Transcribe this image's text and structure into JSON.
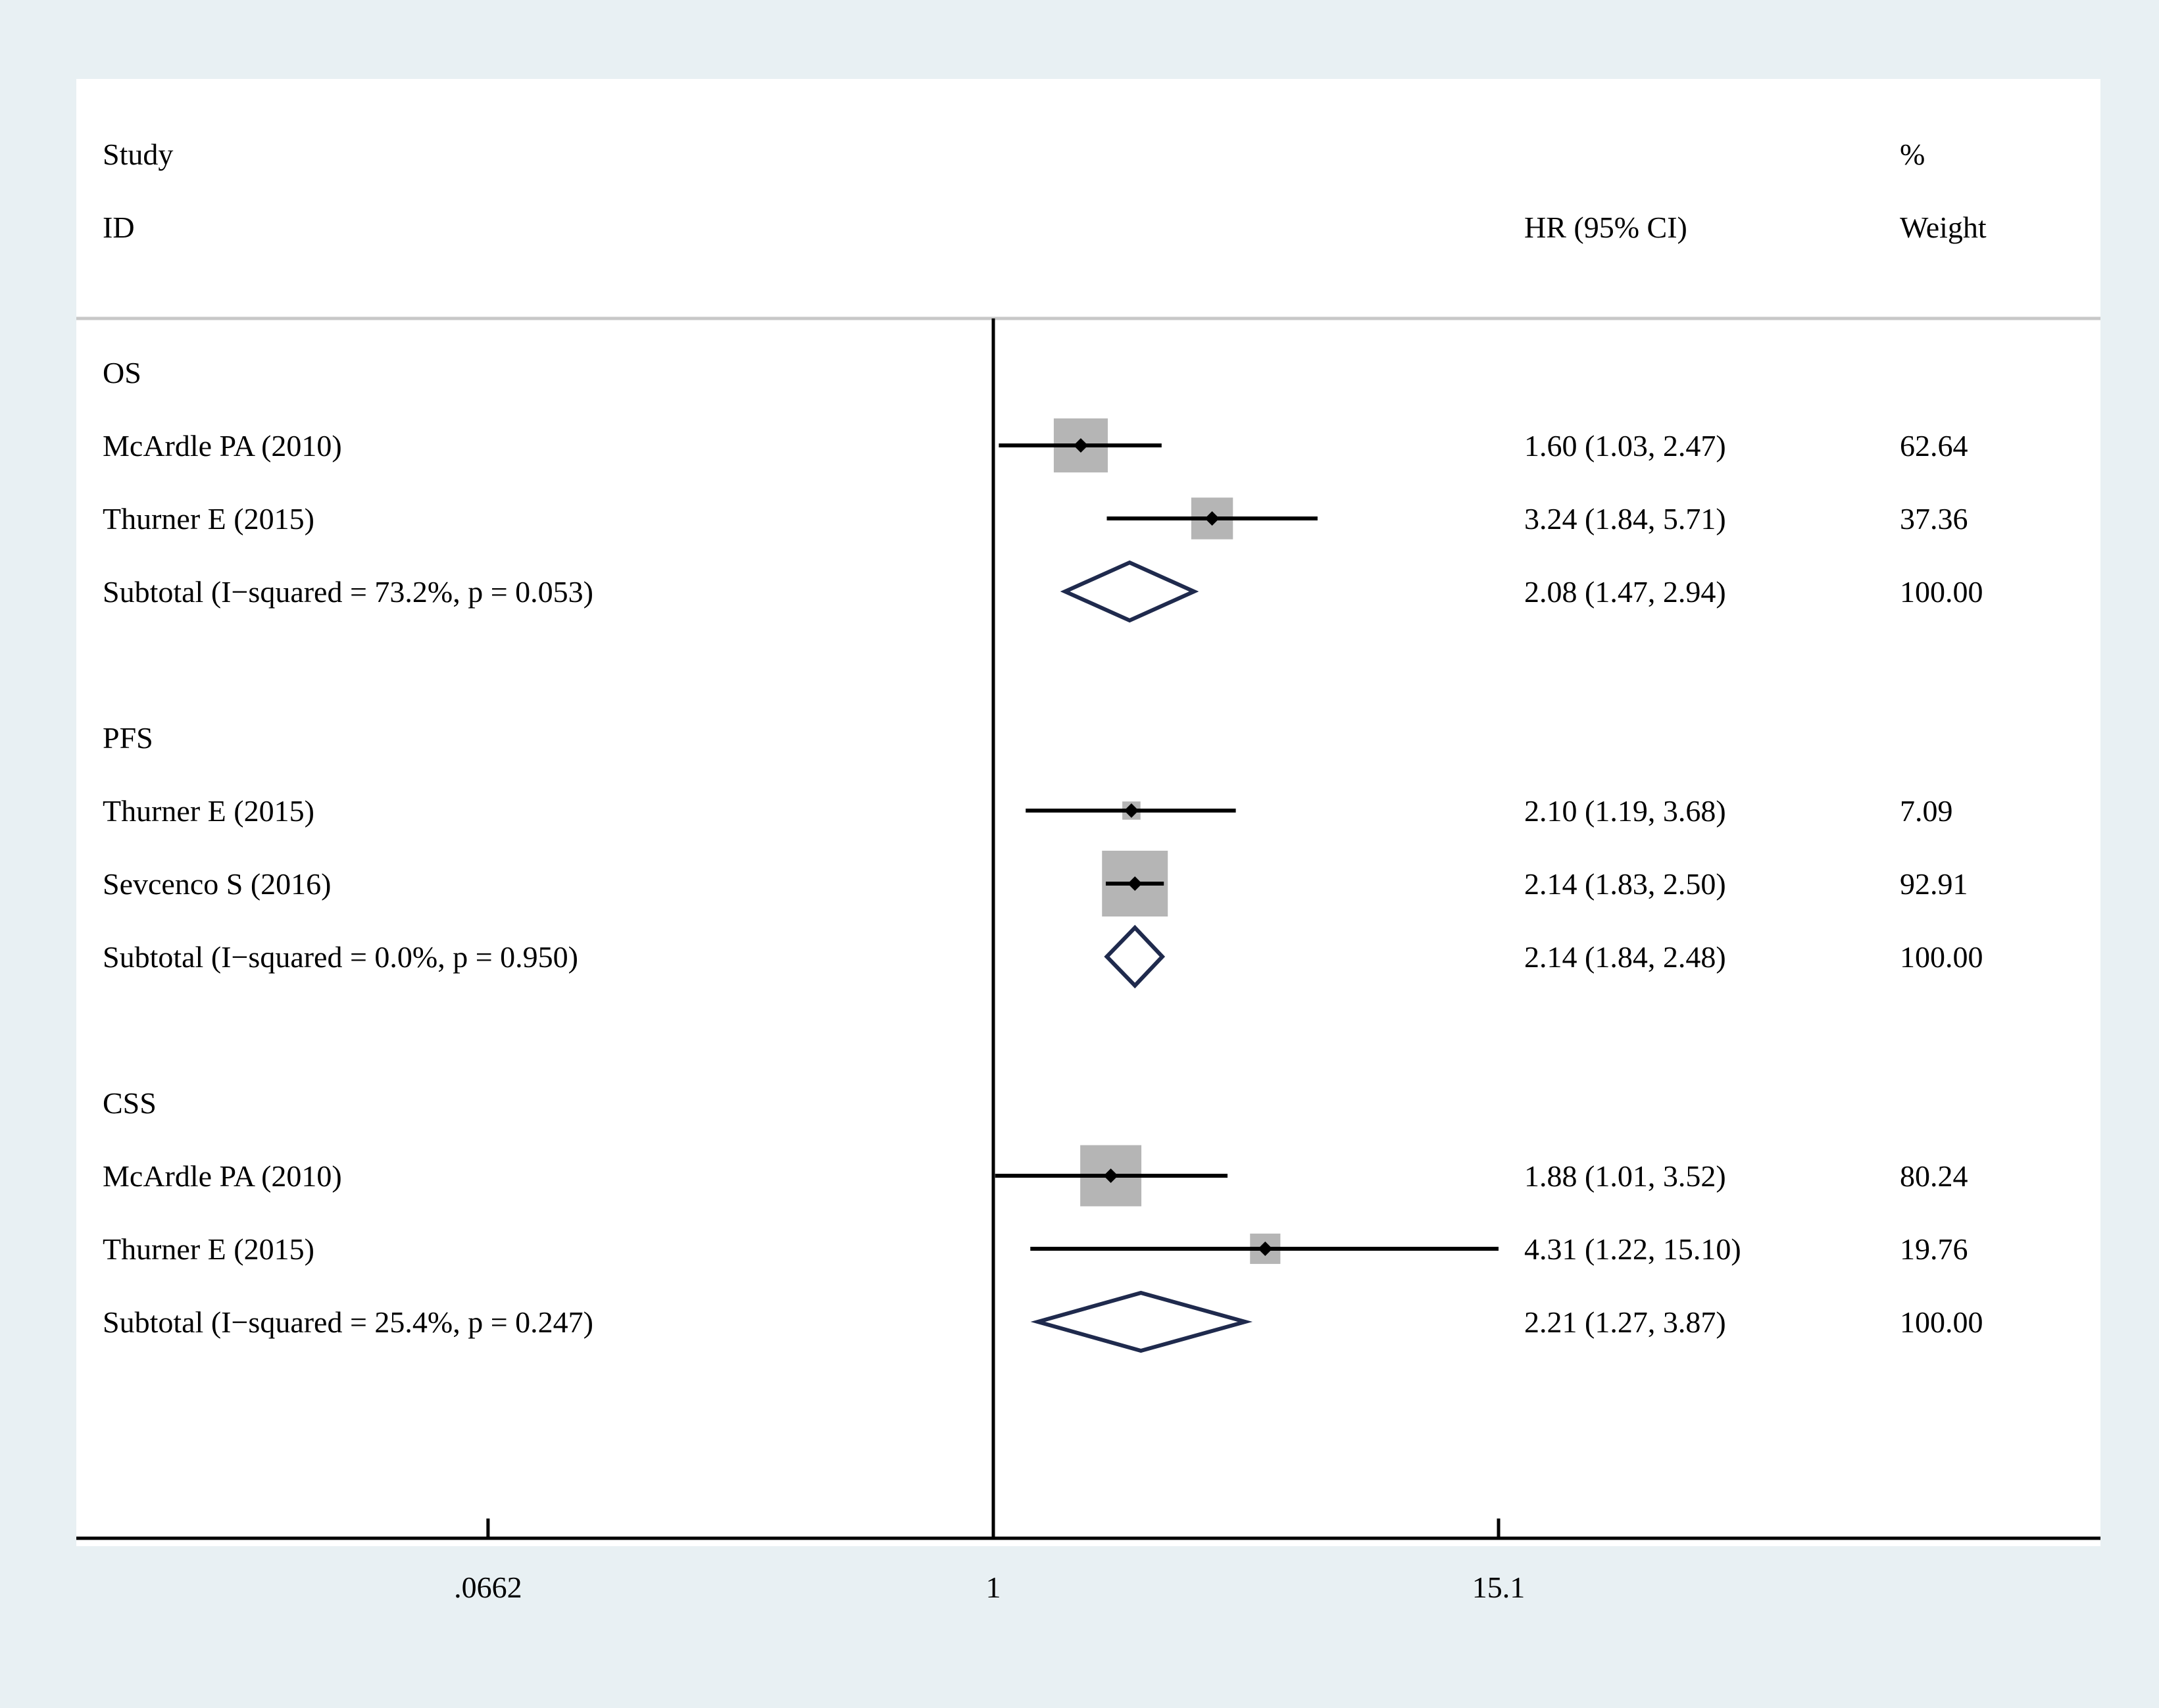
{
  "chart_data": {
    "type": "forest",
    "header": {
      "study_line1": "Study",
      "study_line2": "ID",
      "effect_header": "HR (95% CI)",
      "weight_line1": "%",
      "weight_line2": "Weight"
    },
    "x_scale": "log",
    "null_line": 1,
    "xlim": [
      0.0662,
      15.1
    ],
    "ticks": [
      {
        "value": 0.0662,
        "label": ".0662"
      },
      {
        "value": 1,
        "label": "1"
      },
      {
        "value": 15.1,
        "label": "15.1"
      }
    ],
    "rows": [
      {
        "kind": "group",
        "label": "OS"
      },
      {
        "kind": "study",
        "label": "McArdle PA  (2010)",
        "hr": 1.6,
        "lo": 1.03,
        "hi": 2.47,
        "ci_text": "1.60 (1.03, 2.47)",
        "weight": 62.64,
        "weight_text": "62.64"
      },
      {
        "kind": "study",
        "label": "Thurner E  (2015)",
        "hr": 3.24,
        "lo": 1.84,
        "hi": 5.71,
        "ci_text": "3.24 (1.84, 5.71)",
        "weight": 37.36,
        "weight_text": "37.36"
      },
      {
        "kind": "subtotal",
        "label": "Subtotal  (I−squared = 73.2%, p = 0.053)",
        "hr": 2.08,
        "lo": 1.47,
        "hi": 2.94,
        "ci_text": "2.08 (1.47, 2.94)",
        "weight_text": "100.00"
      },
      {
        "kind": "spacer"
      },
      {
        "kind": "group",
        "label": "PFS"
      },
      {
        "kind": "study",
        "label": "Thurner E  (2015)",
        "hr": 2.1,
        "lo": 1.19,
        "hi": 3.68,
        "ci_text": "2.10 (1.19, 3.68)",
        "weight": 7.09,
        "weight_text": "7.09"
      },
      {
        "kind": "study",
        "label": "Sevcenco S  (2016)",
        "hr": 2.14,
        "lo": 1.83,
        "hi": 2.5,
        "ci_text": "2.14 (1.83, 2.50)",
        "weight": 92.91,
        "weight_text": "92.91"
      },
      {
        "kind": "subtotal",
        "label": "Subtotal  (I−squared = 0.0%, p = 0.950)",
        "hr": 2.14,
        "lo": 1.84,
        "hi": 2.48,
        "ci_text": "2.14 (1.84, 2.48)",
        "weight_text": "100.00"
      },
      {
        "kind": "spacer"
      },
      {
        "kind": "group",
        "label": "CSS"
      },
      {
        "kind": "study",
        "label": "McArdle PA  (2010)",
        "hr": 1.88,
        "lo": 1.01,
        "hi": 3.52,
        "ci_text": "1.88 (1.01, 3.52)",
        "weight": 80.24,
        "weight_text": "80.24"
      },
      {
        "kind": "study",
        "label": "Thurner E  (2015)",
        "hr": 4.31,
        "lo": 1.22,
        "hi": 15.1,
        "ci_text": "4.31 (1.22, 15.10)",
        "weight": 19.76,
        "weight_text": "19.76"
      },
      {
        "kind": "subtotal",
        "label": "Subtotal  (I−squared = 25.4%, p = 0.247)",
        "hr": 2.21,
        "lo": 1.27,
        "hi": 3.87,
        "ci_text": "2.21 (1.27, 3.87)",
        "weight_text": "100.00"
      }
    ],
    "colors": {
      "outer_background": "#e8f0f3",
      "panel_background": "#ffffff",
      "weight_box": "#b5b5b5",
      "point": "#000000",
      "ci_line": "#000000",
      "diamond": "#1f2a4d",
      "header_rule": "#c8c8c8"
    }
  }
}
